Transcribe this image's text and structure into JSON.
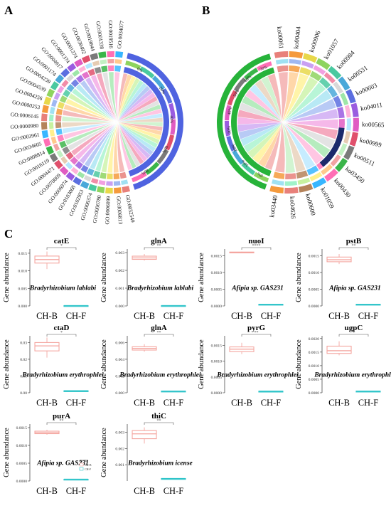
{
  "panels": {
    "a": {
      "letter": "A"
    },
    "b": {
      "letter": "B"
    },
    "c": {
      "letter": "C"
    }
  },
  "chord_a": {
    "type": "chord",
    "go_terms": [
      "GO:0032549",
      "GO:0006813",
      "GO:0006099",
      "GO:0006780",
      "GO:0006374",
      "GO:0102953",
      "GO:0103068",
      "GO:0006974",
      "GO:0070069",
      "GO:0004471",
      "GO:0016119",
      "GO:0008814",
      "GO:0034605",
      "GO:0003961",
      "GO:0000980",
      "GO:0006145",
      "GO:0000253",
      "GO:0004256",
      "GO:0004539",
      "GO:0004239",
      "GO:0001174",
      "GO:0004917",
      "GO:0001374",
      "GO:0001374",
      "GO:0030492",
      "GO:0019844",
      "GO:0001338",
      "GO:0019516",
      "GO:0034077"
    ],
    "percent_ticks": [
      "0%",
      "20%",
      "40%",
      "60%",
      "80%"
    ]
  },
  "chord_b": {
    "type": "chord",
    "ko_terms": [
      "ko00061",
      "ko00404",
      "ko00906",
      "ko01057",
      "ko00984",
      "ko00531",
      "ko00603",
      "ko04011",
      "ko00565",
      "ko00999",
      "ko00511",
      "ko03450",
      "ko00430",
      "ko01059",
      "ko00600",
      "ko04626",
      "ko03440"
    ],
    "percent_ticks": [
      "0%",
      "10%",
      "20%",
      "30%",
      "40%",
      "50%",
      "60%",
      "70%"
    ]
  },
  "chart_data": [
    {
      "type": "box",
      "title": "catE",
      "organism": "Bradyrhizobium lablabi",
      "ylabel": "Gene abundance",
      "categories": [
        "CH-B",
        "CH-F"
      ],
      "ylim": [
        0,
        0.0162
      ],
      "y_ticks": [
        "0.000",
        "0.005",
        "0.010",
        "0.015"
      ],
      "signif": "*",
      "boxes": [
        {
          "min": 0.0105,
          "q1": 0.0122,
          "median": 0.0132,
          "q3": 0.0142,
          "max": 0.0155
        },
        {
          "min": 0.0001,
          "q1": 0.0001,
          "median": 0.0001,
          "q3": 0.0001,
          "max": 0.0001
        }
      ]
    },
    {
      "type": "box",
      "title": "glnA",
      "organism": "Bradyrhizobium lablabi",
      "ylabel": "Gene abundance",
      "categories": [
        "CH-B",
        "CH-F"
      ],
      "ylim": [
        0,
        0.0032
      ],
      "y_ticks": [
        "0.000",
        "0.001",
        "0.002",
        "0.003"
      ],
      "signif": "**",
      "boxes": [
        {
          "min": 0.00255,
          "q1": 0.00262,
          "median": 0.0027,
          "q3": 0.0028,
          "max": 0.00292
        },
        {
          "min": 2e-05,
          "q1": 2e-05,
          "median": 2e-05,
          "q3": 2e-05,
          "max": 2e-05
        }
      ]
    },
    {
      "type": "box",
      "title": "nuoI",
      "organism": "Afipia sp. GAS231",
      "ylabel": "Gene abundance",
      "categories": [
        "CH-B",
        "CH-F"
      ],
      "ylim": [
        0,
        0.0017
      ],
      "y_ticks": [
        "0.0000",
        "0.0005",
        "0.0010",
        "0.0015"
      ],
      "signif": "****",
      "boxes": [
        {
          "min": 0.00158,
          "q1": 0.00159,
          "median": 0.0016,
          "q3": 0.00161,
          "max": 0.00162
        },
        {
          "min": 5e-05,
          "q1": 5e-05,
          "median": 5e-05,
          "q3": 5e-05,
          "max": 5e-05
        }
      ]
    },
    {
      "type": "box",
      "title": "pstB",
      "organism": "Afipia sp. GAS231",
      "ylabel": "Gene abundance",
      "categories": [
        "CH-B",
        "CH-F"
      ],
      "ylim": [
        0,
        0.0017
      ],
      "y_ticks": [
        "0.0000",
        "0.0005",
        "0.0010",
        "0.0015"
      ],
      "signif": "**",
      "boxes": [
        {
          "min": 0.00125,
          "q1": 0.00132,
          "median": 0.00138,
          "q3": 0.00146,
          "max": 0.00155
        },
        {
          "min": 5e-05,
          "q1": 5e-05,
          "median": 5e-05,
          "q3": 5e-05,
          "max": 5e-05
        }
      ]
    },
    {
      "type": "box",
      "title": "ctaD",
      "organism": "Bradyrhizobium erythrophlei",
      "ylabel": "Gene abundance",
      "categories": [
        "CH-B",
        "CH-F"
      ],
      "ylim": [
        0,
        0.034
      ],
      "y_ticks": [
        "0.00",
        "0.01",
        "0.02",
        "0.03"
      ],
      "signif": "*",
      "boxes": [
        {
          "min": 0.021,
          "q1": 0.025,
          "median": 0.028,
          "q3": 0.03,
          "max": 0.033
        },
        {
          "min": 0.0012,
          "q1": 0.0012,
          "median": 0.0012,
          "q3": 0.0012,
          "max": 0.0012
        }
      ]
    },
    {
      "type": "box",
      "title": "glnA",
      "organism": "Bradyrhizobium erythrophlei",
      "ylabel": "Gene abundance",
      "categories": [
        "CH-B",
        "CH-F"
      ],
      "ylim": [
        0,
        0.0068
      ],
      "y_ticks": [
        "0.000",
        "0.002",
        "0.004",
        "0.006"
      ],
      "signif": "**",
      "boxes": [
        {
          "min": 0.0049,
          "q1": 0.0051,
          "median": 0.0053,
          "q3": 0.0055,
          "max": 0.0058
        },
        {
          "min": 0.0002,
          "q1": 0.0002,
          "median": 0.0002,
          "q3": 0.0002,
          "max": 0.0002
        }
      ]
    },
    {
      "type": "box",
      "title": "pyrG",
      "organism": "Bradyrhizobium erythrophlei",
      "ylabel": "Gene abundance",
      "categories": [
        "CH-B",
        "CH-F"
      ],
      "ylim": [
        0,
        0.0018
      ],
      "y_ticks": [
        "0.0000",
        "0.0005",
        "0.0010",
        "0.0015"
      ],
      "signif": "**",
      "boxes": [
        {
          "min": 0.00122,
          "q1": 0.0013,
          "median": 0.00138,
          "q3": 0.00145,
          "max": 0.00158
        },
        {
          "min": 5e-05,
          "q1": 5e-05,
          "median": 5e-05,
          "q3": 5e-05,
          "max": 5e-05
        }
      ]
    },
    {
      "type": "box",
      "title": "ugpC",
      "organism": "Bradyrhizobium erythrophlei",
      "ylabel": "Gene abundance",
      "categories": [
        "CH-B",
        "CH-F"
      ],
      "ylim": [
        0,
        0.0021
      ],
      "y_ticks": [
        "0.0000",
        "0.0005",
        "0.0010",
        "0.0015",
        "0.0020"
      ],
      "signif": "*",
      "boxes": [
        {
          "min": 0.00138,
          "q1": 0.00145,
          "median": 0.00155,
          "q3": 0.00172,
          "max": 0.0019
        },
        {
          "min": 6e-05,
          "q1": 6e-05,
          "median": 6e-05,
          "q3": 6e-05,
          "max": 6e-05
        }
      ]
    },
    {
      "type": "box",
      "title": "purA",
      "organism": "Afipia sp. GAS231",
      "ylabel": "Gene abundance",
      "categories": [
        "CH-B",
        "CH-F"
      ],
      "ylim": [
        0,
        0.0016
      ],
      "y_ticks": [
        "0.0000",
        "0.0005",
        "0.0010",
        "0.0015"
      ],
      "signif": "**",
      "boxes": [
        {
          "min": 0.0013,
          "q1": 0.00133,
          "median": 0.00136,
          "q3": 0.0014,
          "max": 0.00144
        },
        {
          "min": 5e-05,
          "q1": 5e-05,
          "median": 5e-05,
          "q3": 5e-05,
          "max": 5e-05
        }
      ]
    },
    {
      "type": "box",
      "title": "thiC",
      "organism": "Bradyrhizobium icense",
      "ylabel": "Gene abundance",
      "categories": [
        "CH-B",
        "CH-F"
      ],
      "ylim": [
        0,
        0.0035
      ],
      "y_ticks": [
        "0.001",
        "0.002",
        "0.003"
      ],
      "signif": "**",
      "boxes": [
        {
          "min": 0.0023,
          "q1": 0.0026,
          "median": 0.0029,
          "q3": 0.0031,
          "max": 0.0033
        },
        {
          "min": 0.00015,
          "q1": 0.00015,
          "median": 0.00015,
          "q3": 0.00015,
          "max": 0.00015
        }
      ]
    }
  ],
  "legend": {
    "title": "groups",
    "items": [
      "CH-B",
      "CH-F"
    ]
  },
  "colors": {
    "group_b": "#f4a6a0",
    "group_f": "#2ec4c9",
    "signif": "#555555",
    "ring_blue": "#4f63e0",
    "ring_green": "#27b33a",
    "navy": "#1b2a6b"
  }
}
